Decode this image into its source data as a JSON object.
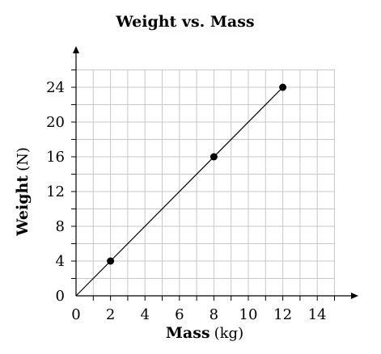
{
  "chart_data": {
    "type": "scatter",
    "title": "Weight vs. Mass",
    "xlabel": {
      "bold": "Mass",
      "unit": "(kg)"
    },
    "ylabel": {
      "bold": "Weight",
      "unit": "(N)"
    },
    "xlim": [
      0,
      15
    ],
    "ylim": [
      0,
      26
    ],
    "x_ticks": [
      0,
      2,
      4,
      6,
      8,
      10,
      12,
      14
    ],
    "y_ticks": [
      0,
      4,
      8,
      12,
      16,
      20,
      24
    ],
    "grid": true,
    "series": [
      {
        "points": [
          {
            "x": 2,
            "y": 4
          },
          {
            "x": 8,
            "y": 16
          },
          {
            "x": 12,
            "y": 24
          }
        ]
      }
    ],
    "trend_line": {
      "from": {
        "x": 0,
        "y": 0
      },
      "to": {
        "x": 12,
        "y": 24
      }
    }
  }
}
